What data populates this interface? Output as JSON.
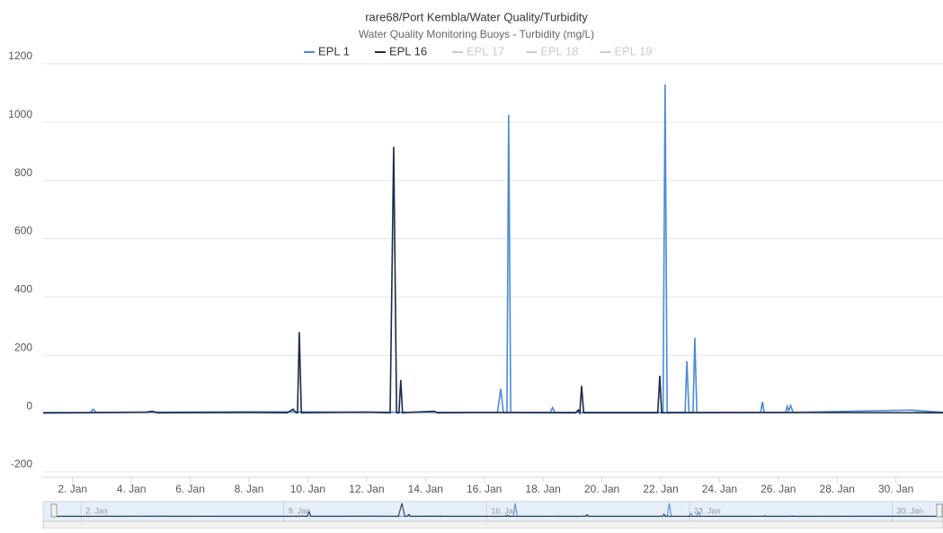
{
  "chart_data": {
    "type": "line",
    "title": "rare68/Port Kembla/Water Quality/Turbidity",
    "subtitle": "Water Quality Monitoring Buoys - Turbidity (mg/L)",
    "xlim": [
      1,
      31.6
    ],
    "xticks": [
      {
        "value": 2,
        "label": "2. Jan"
      },
      {
        "value": 4,
        "label": "4. Jan"
      },
      {
        "value": 6,
        "label": "6. Jan"
      },
      {
        "value": 8,
        "label": "8. Jan"
      },
      {
        "value": 10,
        "label": "10. Jan"
      },
      {
        "value": 12,
        "label": "12. Jan"
      },
      {
        "value": 14,
        "label": "14. Jan"
      },
      {
        "value": 16,
        "label": "16. Jan"
      },
      {
        "value": 18,
        "label": "18. Jan"
      },
      {
        "value": 20,
        "label": "20. Jan"
      },
      {
        "value": 22,
        "label": "22. Jan"
      },
      {
        "value": 24,
        "label": "24. Jan"
      },
      {
        "value": 26,
        "label": "26. Jan"
      },
      {
        "value": 28,
        "label": "28. Jan"
      },
      {
        "value": 30,
        "label": "30. Jan"
      }
    ],
    "ylim": [
      -200,
      1200
    ],
    "yticks": [
      -200,
      0,
      200,
      400,
      600,
      800,
      1000,
      1200
    ],
    "grid": true,
    "navigator_ticks": [
      {
        "value": 2,
        "label": "2. Jan"
      },
      {
        "value": 9,
        "label": "9. Jan"
      },
      {
        "value": 16,
        "label": "16. Jan"
      },
      {
        "value": 23,
        "label": "23. Jan"
      },
      {
        "value": 30,
        "label": "30. Jan"
      }
    ],
    "hidden_series": [
      "EPL 17",
      "EPL 18",
      "EPL 19"
    ],
    "series": [
      {
        "name": "EPL 1",
        "color": "#4a8ad8",
        "x": [
          1.0,
          2.6,
          2.7,
          2.8,
          8.0,
          16.45,
          16.56,
          16.65,
          16.77,
          16.83,
          16.9,
          18.25,
          18.32,
          18.4,
          22.08,
          22.15,
          22.22,
          22.83,
          22.89,
          22.96,
          23.1,
          23.16,
          23.23,
          25.4,
          25.46,
          25.52,
          26.25,
          26.3,
          26.35,
          26.42,
          26.5,
          30.5,
          31.6
        ],
        "values": [
          4,
          3,
          15,
          4,
          6,
          4,
          85,
          4,
          4,
          1025,
          4,
          4,
          20,
          4,
          4,
          1130,
          4,
          4,
          180,
          4,
          4,
          260,
          4,
          4,
          40,
          4,
          4,
          25,
          10,
          28,
          4,
          12,
          4
        ]
      },
      {
        "name": "EPL 16",
        "color": "#1c2a4a",
        "x": [
          1.0,
          4.5,
          4.7,
          4.9,
          8.0,
          9.3,
          9.5,
          9.6,
          9.65,
          9.71,
          9.78,
          12.0,
          12.8,
          12.92,
          13.02,
          13.1,
          13.16,
          13.22,
          14.3,
          14.4,
          16.0,
          19.1,
          19.2,
          19.25,
          19.31,
          19.38,
          21.9,
          21.97,
          22.03,
          26.0,
          31.6
        ],
        "values": [
          2,
          5,
          8,
          3,
          4,
          3,
          15,
          3,
          3,
          280,
          3,
          5,
          3,
          915,
          3,
          3,
          115,
          3,
          8,
          3,
          4,
          3,
          12,
          3,
          95,
          3,
          3,
          130,
          3,
          4,
          3
        ]
      }
    ]
  }
}
